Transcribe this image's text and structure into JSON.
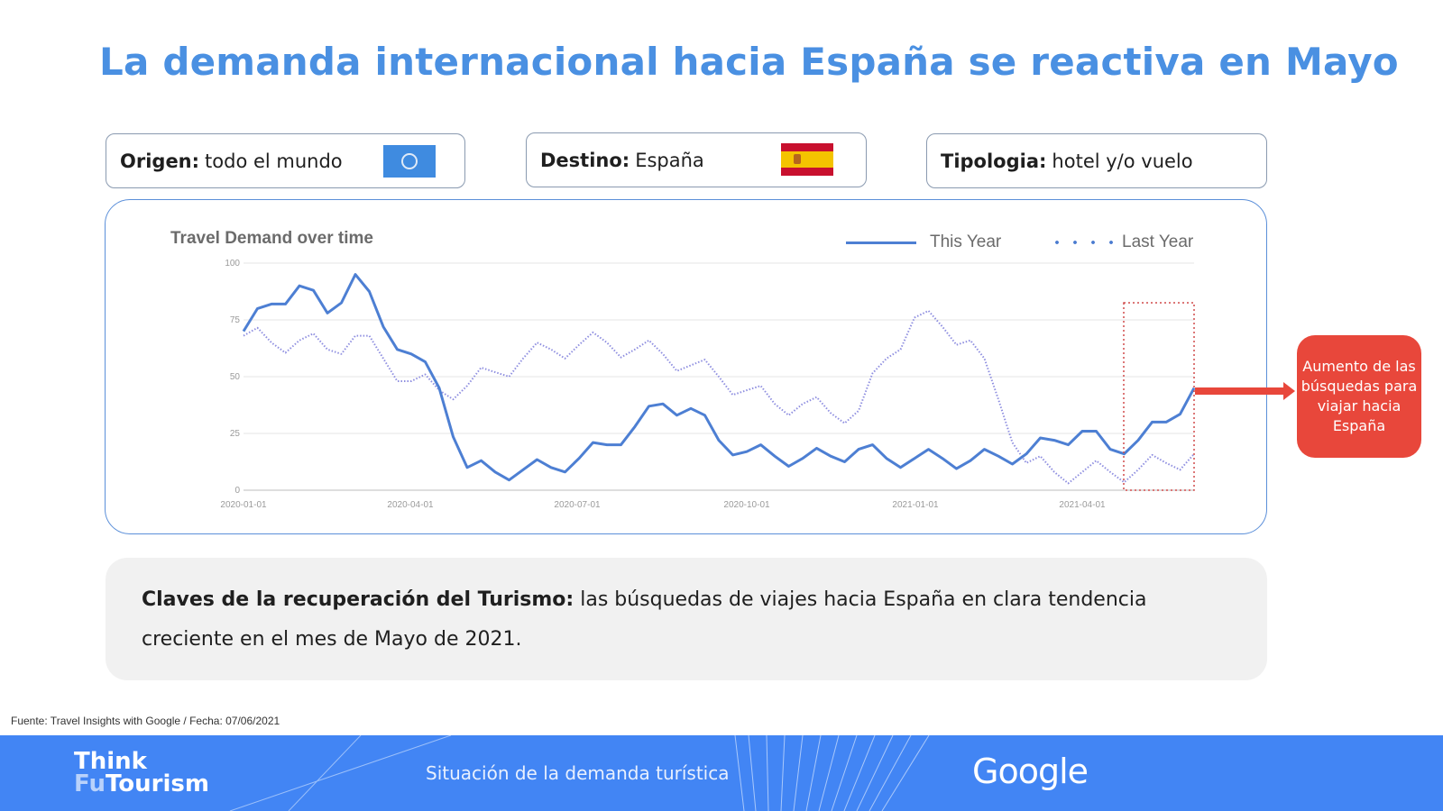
{
  "title": "La demanda internacional hacia España se reactiva en Mayo",
  "filters": {
    "origin": {
      "label": "Origen:",
      "value": "todo el mundo",
      "icon": "un-flag-icon"
    },
    "destination": {
      "label": "Destino:",
      "value": "España",
      "icon": "spain-flag-icon"
    },
    "type": {
      "label": "Tipologia:",
      "value": "hotel y/o vuelo"
    }
  },
  "callout": {
    "text": "Aumento de las búsquedas para viajar hacia España",
    "color": "#e8473b"
  },
  "keys": {
    "bold": "Claves de la recuperación del Turismo:",
    "text": " las búsquedas de viajes hacia España en clara tendencia creciente en el mes de Mayo de 2021."
  },
  "source": "Fuente: Travel Insights with Google / Fecha: 07/06/2021",
  "footer": {
    "logo_line1": "Think",
    "logo_fu": "Fu",
    "logo_line2": "Tourism",
    "subtitle": "Situación de la demanda turística",
    "brand": "Google",
    "color": "#4285f4"
  },
  "chart_data": {
    "type": "line",
    "title": "Travel Demand over time",
    "xlabel": "",
    "ylabel": "",
    "ylim": [
      0,
      100
    ],
    "yticks": [
      0,
      25,
      50,
      75,
      100
    ],
    "xticks": [
      "2020-01-01",
      "2020-04-01",
      "2020-07-01",
      "2020-10-01",
      "2021-01-01",
      "2021-04-01"
    ],
    "legend_position": "top-right",
    "grid": true,
    "highlight": {
      "from": "2021-05-01",
      "to": "2021-06-06",
      "style": "dotted-red-box"
    },
    "x": [
      "2020-01",
      "2020-01b",
      "2020-02",
      "2020-02b",
      "2020-03",
      "2020-03b",
      "2020-04",
      "2020-04b",
      "2020-05",
      "2020-05b",
      "2020-06",
      "2020-06b",
      "2020-07",
      "2020-07b",
      "2020-08",
      "2020-08b",
      "2020-09",
      "2020-09b",
      "2020-10",
      "2020-10b",
      "2020-11",
      "2020-11b",
      "2020-12",
      "2020-12b",
      "2021-01",
      "2021-01b",
      "2021-02",
      "2021-02b",
      "2021-03",
      "2021-03b",
      "2021-04",
      "2021-04b",
      "2021-05",
      "2021-05b",
      "2021-06"
    ],
    "series": [
      {
        "name": "This Year",
        "style": "solid",
        "color": "#4d7fd3",
        "values": [
          70,
          82,
          90,
          78,
          95,
          72,
          60,
          45,
          10,
          8,
          9,
          10,
          14,
          20,
          28,
          38,
          36,
          22,
          17,
          15,
          14,
          15,
          18,
          14,
          14,
          14,
          13,
          15,
          16,
          22,
          26,
          18,
          22,
          30,
          45
        ]
      },
      {
        "name": "Last Year",
        "style": "dotted",
        "color": "#8f8fe0",
        "values": [
          68,
          65,
          66,
          62,
          68,
          58,
          48,
          44,
          46,
          52,
          58,
          62,
          64,
          65,
          62,
          60,
          55,
          50,
          44,
          38,
          38,
          34,
          35,
          58,
          76,
          72,
          66,
          40,
          12,
          8,
          8,
          8,
          9,
          12,
          16
        ]
      }
    ]
  }
}
